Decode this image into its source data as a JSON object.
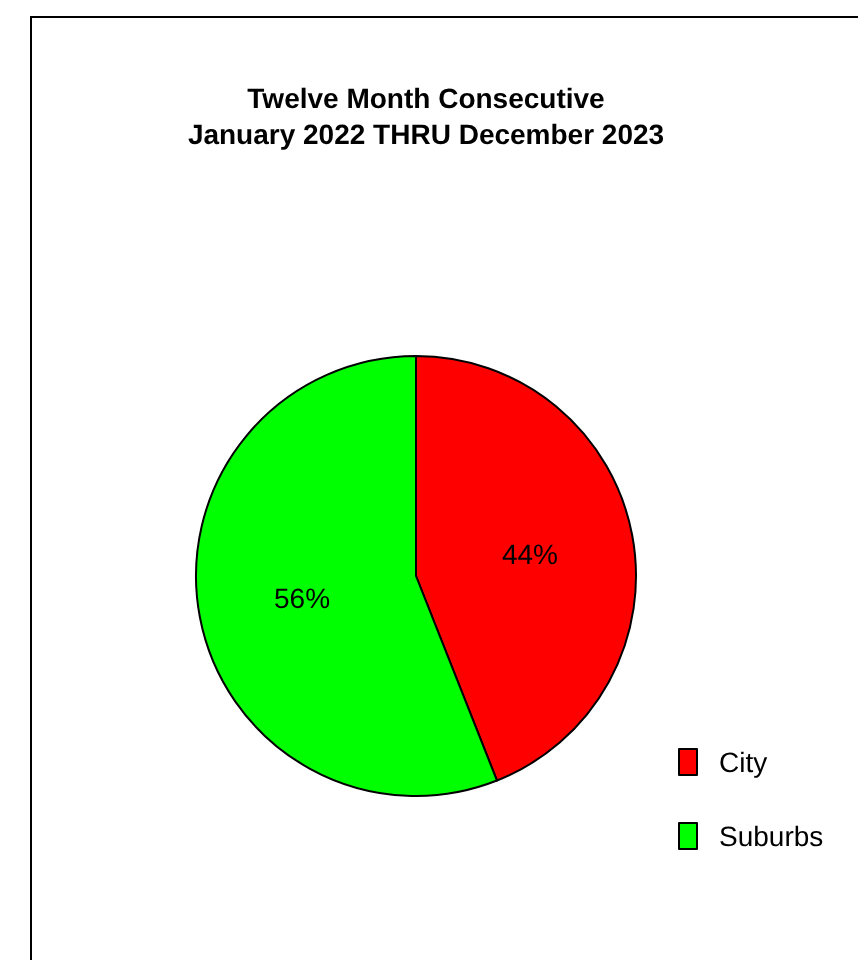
{
  "chart_data": {
    "type": "pie",
    "title": "Twelve Month Consecutive\nJanuary 2022 THRU December 2023",
    "categories": [
      "City",
      "Suburbs"
    ],
    "values": [
      44,
      56
    ],
    "colors": [
      "#ff0000",
      "#00ff00"
    ],
    "value_labels": [
      "44%",
      "56%"
    ],
    "legend": "bottom right"
  }
}
